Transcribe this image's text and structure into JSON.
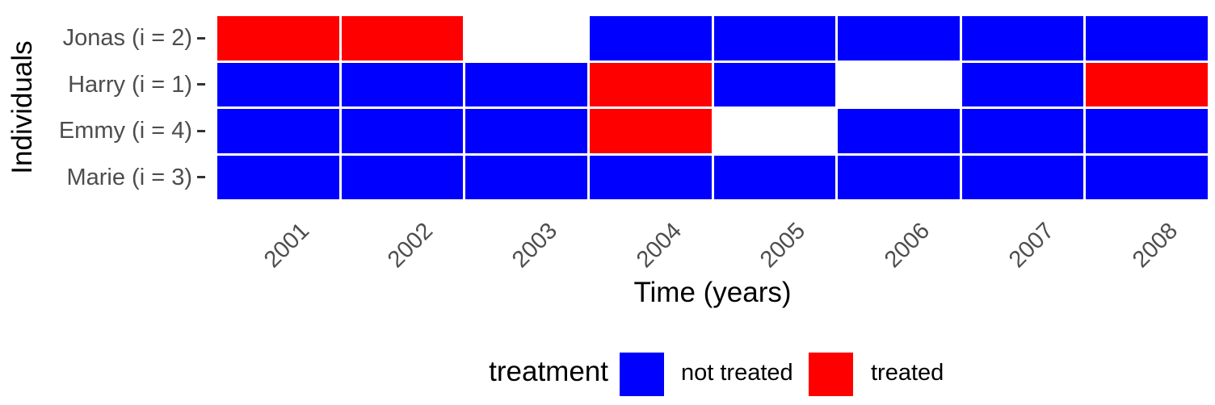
{
  "figure": {
    "background": "#FFFFFF"
  },
  "chart_data": {
    "type": "heatmap",
    "title": "",
    "x_axis": {
      "title": "Time (years)",
      "categories": [
        "2001",
        "2002",
        "2003",
        "2004",
        "2005",
        "2006",
        "2007",
        "2008"
      ],
      "tick_label_angle": 45
    },
    "y_axis": {
      "title": "Individuals",
      "categories": [
        "Jonas (i = 2)",
        "Harry (i = 1)",
        "Emmy (i = 4)",
        "Marie (i = 3)"
      ]
    },
    "rows": [
      {
        "label": "Jonas (i = 2)",
        "values": [
          "treated",
          "treated",
          null,
          "not treated",
          "not treated",
          "not treated",
          "not treated",
          "not treated"
        ]
      },
      {
        "label": "Harry (i = 1)",
        "values": [
          "not treated",
          "not treated",
          "not treated",
          "treated",
          "not treated",
          null,
          "not treated",
          "treated"
        ]
      },
      {
        "label": "Emmy (i = 4)",
        "values": [
          "not treated",
          "not treated",
          "not treated",
          "treated",
          null,
          "not treated",
          "not treated",
          "not treated"
        ]
      },
      {
        "label": "Marie (i = 3)",
        "values": [
          "not treated",
          "not treated",
          "not treated",
          "not treated",
          "not treated",
          "not treated",
          "not treated",
          "not treated"
        ]
      }
    ],
    "colors": {
      "treated": "#FF0000",
      "not treated": "#0000FF",
      "missing": "#FFFFFF"
    },
    "legend": {
      "title": "treatment",
      "position": "bottom",
      "entries": [
        {
          "label": "not treated",
          "color": "#0000FF"
        },
        {
          "label": "treated",
          "color": "#FF0000"
        }
      ]
    },
    "style": {
      "axis_text_color": "#4D4D4D",
      "axis_title_color": "#000000",
      "tick_color": "#333333",
      "grid": false
    }
  }
}
